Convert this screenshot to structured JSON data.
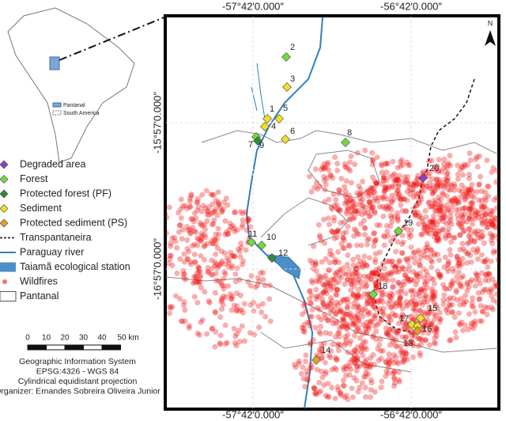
{
  "coordinates": {
    "top": [
      "-57°42′0.000″",
      "-56°42′0.000″"
    ],
    "bottom": [
      "-57°42′0.000″",
      "-56°42′0.000″"
    ],
    "left": [
      "-15°57′0.000″",
      "-16°57′0.000″"
    ]
  },
  "north": "N",
  "inset": {
    "legend": [
      "Pantanal",
      "South America"
    ]
  },
  "legend": [
    {
      "name": "Degraded area",
      "color": "#8e3fbf",
      "samples": [
        "20"
      ]
    },
    {
      "name": "Forest",
      "color": "#6fdc3c",
      "samples": [
        "2",
        "7",
        "8",
        "19",
        "11",
        "10",
        "18"
      ]
    },
    {
      "name": "Protected forest (PF)",
      "color": "#2e8b3a",
      "samples": [
        "9",
        "12"
      ]
    },
    {
      "name": "Sediment",
      "color": "#f2e01e",
      "samples": [
        "1",
        "3",
        "4",
        "5",
        "6",
        "15",
        "17",
        "16"
      ]
    },
    {
      "name": "Protected sediment (PS)",
      "color": "#e0a020",
      "samples": [
        "14",
        "13"
      ]
    },
    {
      "name": "Transpantaneira"
    },
    {
      "name": "Paraguay river"
    },
    {
      "name": "Taiamã ecological station"
    },
    {
      "name": "Wildfires"
    },
    {
      "name": "Pantanal"
    }
  ],
  "scale": [
    "0",
    "10",
    "20",
    "30",
    "40",
    "50 km"
  ],
  "credits": [
    "Geographic Information System",
    "EPSG:4326 - WGS 84",
    "Cylindrical equidistant projection",
    "Organizer: Ernandes Sobreira Oliveira Junior"
  ]
}
